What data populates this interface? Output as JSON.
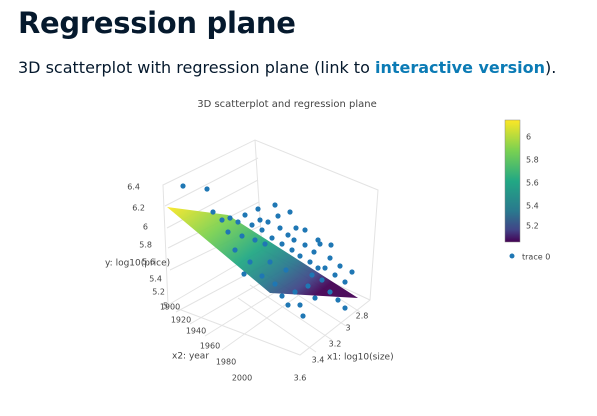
{
  "header": {
    "title": "Regression plane"
  },
  "subtitle": {
    "before": "3D scatterplot with regression plane (link to ",
    "link": "interactive version",
    "after": ")."
  },
  "plot": {
    "title": "3D scatterplot and regression plane",
    "y_axis": {
      "label": "y: log10(price)",
      "ticks": [
        "6.4",
        "6.2",
        "6",
        "5.8",
        "5.6",
        "5.4",
        "5.2",
        "5"
      ]
    },
    "x2_axis": {
      "label": "x2: year",
      "ticks": [
        "1900",
        "1920",
        "1940",
        "1960",
        "1980",
        "2000"
      ]
    },
    "x1_axis": {
      "label": "x1: log10(size)",
      "ticks": [
        "2.8",
        "3",
        "3.2",
        "3.4",
        "3.6"
      ]
    },
    "colorbar": {
      "ticks": [
        "6",
        "5.8",
        "5.6",
        "5.4",
        "5.2"
      ]
    },
    "legend": [
      "trace 0"
    ]
  }
}
